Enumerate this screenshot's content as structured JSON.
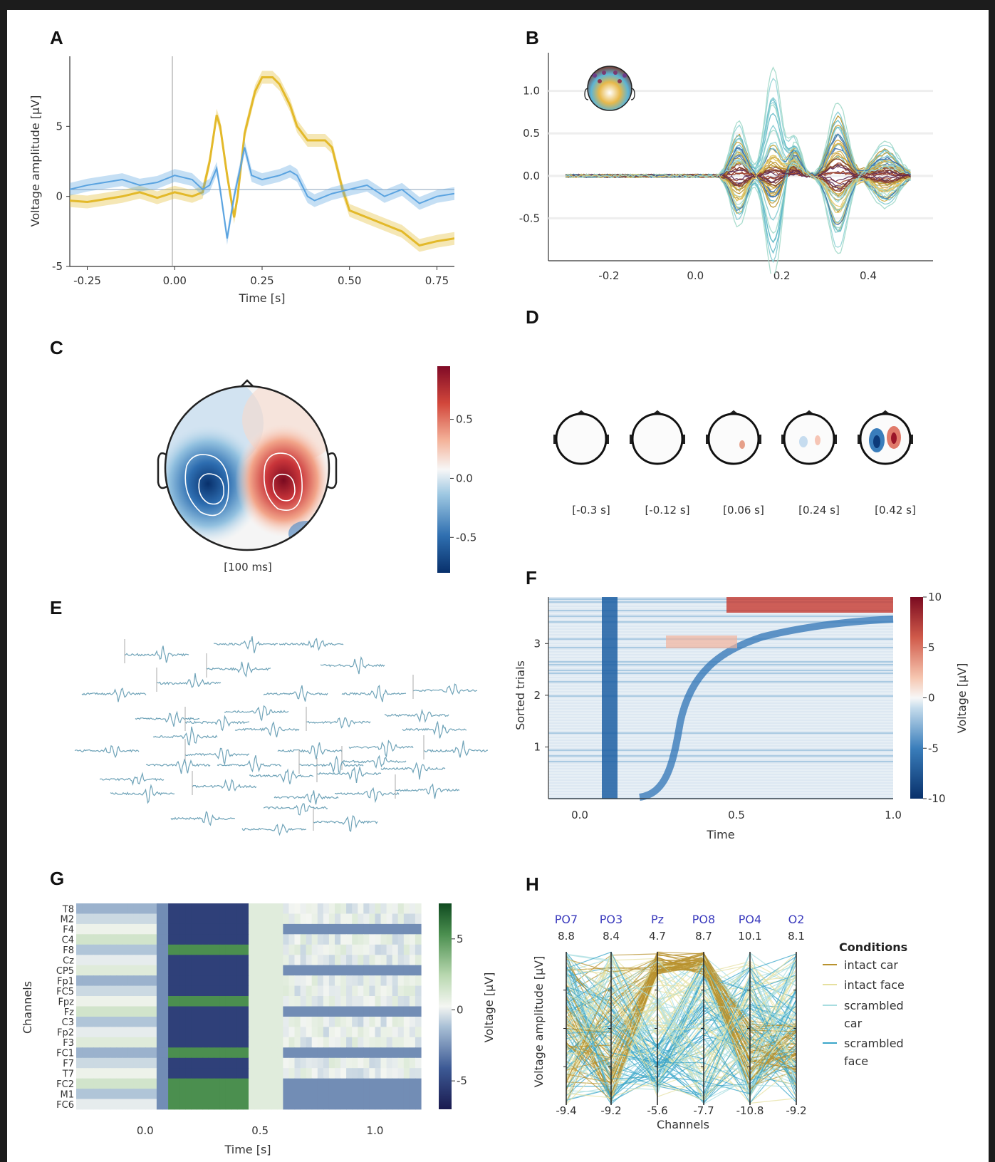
{
  "panels": {
    "A": "A",
    "B": "B",
    "C": "C",
    "D": "D",
    "E": "E",
    "F": "F",
    "G": "G",
    "H": "H"
  },
  "chart_data": [
    {
      "id": "A",
      "type": "line",
      "xlabel": "Time [s]",
      "ylabel": "Voltage amplitude [µV]",
      "xticks": [
        "-0.25",
        "0.00",
        "0.25",
        "0.50",
        "0.75"
      ],
      "yticks": [
        "-5",
        "0",
        "5"
      ],
      "xlim": [
        -0.3,
        0.8
      ],
      "ylim": [
        -5,
        10
      ],
      "series": [
        {
          "color": "#e3b92a",
          "x": [
            -0.3,
            -0.25,
            -0.2,
            -0.15,
            -0.1,
            -0.05,
            0.0,
            0.05,
            0.08,
            0.1,
            0.12,
            0.13,
            0.15,
            0.17,
            0.18,
            0.2,
            0.23,
            0.25,
            0.28,
            0.3,
            0.33,
            0.35,
            0.38,
            0.4,
            0.43,
            0.45,
            0.48,
            0.5,
            0.55,
            0.6,
            0.65,
            0.7,
            0.75,
            0.8
          ],
          "y": [
            -0.3,
            -0.4,
            -0.2,
            0.0,
            0.3,
            -0.1,
            0.3,
            0.0,
            0.3,
            2.5,
            5.8,
            5.0,
            1.5,
            -1.5,
            0.0,
            4.5,
            7.5,
            8.5,
            8.5,
            8.0,
            6.5,
            5.0,
            4.0,
            4.0,
            4.0,
            3.5,
            0.5,
            -1.0,
            -1.5,
            -2.0,
            -2.5,
            -3.5,
            -3.2,
            -3.0
          ]
        },
        {
          "color": "#5aa3e0",
          "x": [
            -0.3,
            -0.25,
            -0.2,
            -0.15,
            -0.1,
            -0.05,
            0.0,
            0.05,
            0.08,
            0.1,
            0.12,
            0.13,
            0.15,
            0.17,
            0.2,
            0.22,
            0.25,
            0.3,
            0.33,
            0.35,
            0.38,
            0.4,
            0.45,
            0.5,
            0.55,
            0.6,
            0.65,
            0.7,
            0.75,
            0.8
          ],
          "y": [
            0.5,
            0.8,
            1.0,
            1.2,
            0.8,
            1.0,
            1.5,
            1.2,
            0.5,
            0.8,
            2.0,
            0.5,
            -3.0,
            0.0,
            3.5,
            1.5,
            1.2,
            1.5,
            1.8,
            1.5,
            0.0,
            -0.3,
            0.2,
            0.5,
            0.8,
            0.0,
            0.5,
            -0.5,
            0.0,
            0.2
          ]
        }
      ]
    },
    {
      "id": "B",
      "type": "line",
      "xticks": [
        "-0.2",
        "0.0",
        "0.2",
        "0.4"
      ],
      "yticks": [
        "-0.5",
        "0.0",
        "0.5",
        "1.0"
      ],
      "xlim": [
        -0.34,
        0.55
      ],
      "ylim": [
        -1.0,
        1.45
      ],
      "series_count": 60
    },
    {
      "id": "C",
      "type": "heatmap",
      "caption": "[100 ms]",
      "colorbar_ticks": [
        "0.5",
        "0.0",
        "-0.5"
      ],
      "colorbar_range": [
        -0.8,
        0.95
      ]
    },
    {
      "id": "D",
      "type": "heatmap",
      "captions": [
        "[-0.3 s]",
        "[-0.12 s]",
        "[0.06 s]",
        "[0.24 s]",
        "[0.42 s]"
      ]
    },
    {
      "id": "E",
      "type": "line",
      "series_count": 40
    },
    {
      "id": "F",
      "type": "heatmap",
      "xlabel": "Time",
      "ylabel": "Sorted trials",
      "xticks": [
        "0.0",
        "0.5",
        "1.0"
      ],
      "yticks": [
        "1",
        "2",
        "3"
      ],
      "xlim": [
        -0.1,
        1.0
      ],
      "ylim": [
        0,
        3.9
      ],
      "colorbar_label": "Voltage [µV]",
      "colorbar_ticks": [
        "10",
        "5",
        "0",
        "-5",
        "-10"
      ],
      "colorbar_range": [
        -10,
        10
      ]
    },
    {
      "id": "G",
      "type": "heatmap",
      "xlabel": "Time [s]",
      "ylabel": "Channels",
      "xticks": [
        "0.0",
        "0.5",
        "1.0"
      ],
      "xlim": [
        -0.3,
        1.2
      ],
      "rows": [
        "T8",
        "M2",
        "F4",
        "C4",
        "F8",
        "Cz",
        "CP5",
        "Fp1",
        "FC5",
        "Fpz",
        "Fz",
        "C3",
        "Fp2",
        "F3",
        "FC1",
        "F7",
        "T7",
        "FC2",
        "M1",
        "FC6"
      ],
      "colorbar_label": "Voltage [µV]",
      "colorbar_ticks": [
        "5",
        "0",
        "-5"
      ],
      "colorbar_range": [
        -7,
        7.5
      ]
    },
    {
      "id": "H",
      "type": "line",
      "xlabel": "Channels",
      "ylabel": "Voltage amplitude [µV]",
      "axes": [
        {
          "name": "PO7",
          "max": "8.8",
          "min": "-9.4"
        },
        {
          "name": "PO3",
          "max": "8.4",
          "min": "-9.2"
        },
        {
          "name": "Pz",
          "max": "4.7",
          "min": "-5.6"
        },
        {
          "name": "PO8",
          "max": "8.7",
          "min": "-7.7"
        },
        {
          "name": "PO4",
          "max": "10.1",
          "min": "-10.8"
        },
        {
          "name": "O2",
          "max": "8.1",
          "min": "-9.2"
        }
      ],
      "legend_title": "Conditions",
      "legend": [
        {
          "name": "intact car",
          "color": "#b8922e"
        },
        {
          "name": "intact face",
          "color": "#e6e0a0"
        },
        {
          "name": "scrambled car",
          "color": "#a8dde0"
        },
        {
          "name": "scrambled face",
          "color": "#3aa6c9"
        }
      ]
    }
  ]
}
